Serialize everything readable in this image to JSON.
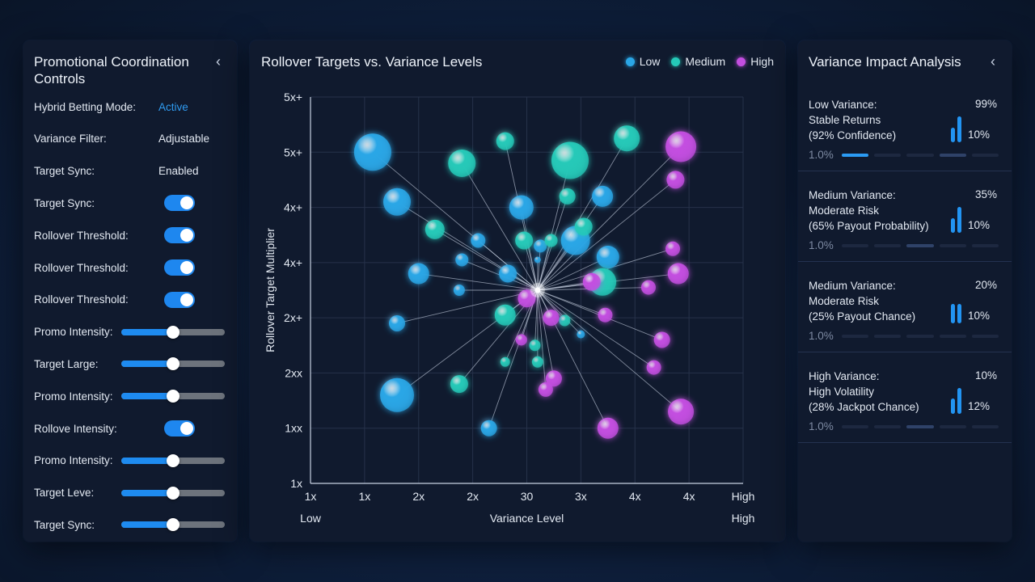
{
  "left": {
    "title": "Promotional Coordination Controls",
    "collapse_icon": "‹",
    "rows": [
      {
        "label": "Hybrid Betting Mode:",
        "kind": "text",
        "value": "Active",
        "active": true
      },
      {
        "label": "Variance Filter:",
        "kind": "text",
        "value": "Adjustable"
      },
      {
        "label": "Target Sync:",
        "kind": "text",
        "value": "Enabled"
      },
      {
        "label": "Target Sync:",
        "kind": "toggle",
        "on": true
      },
      {
        "label": "Rollover Threshold:",
        "kind": "toggle",
        "on": true
      },
      {
        "label": "Rollover Threshold:",
        "kind": "toggle",
        "on": true
      },
      {
        "label": "Rollover Threshold:",
        "kind": "toggle",
        "on": true
      },
      {
        "label": "Promo Intensity:",
        "kind": "slider",
        "level": 0.5
      },
      {
        "label": "Target Large:",
        "kind": "slider",
        "level": 0.5
      },
      {
        "label": "Promo Intensity:",
        "kind": "slider",
        "level": 0.5
      },
      {
        "label": "Rollove Intensity:",
        "kind": "toggle",
        "on": true
      },
      {
        "label": "Promo Intensity:",
        "kind": "slider",
        "level": 0.5
      },
      {
        "label": "Target Leve:",
        "kind": "slider",
        "level": 0.5
      },
      {
        "label": "Target Sync:",
        "kind": "slider",
        "level": 0.5
      }
    ]
  },
  "chart": {
    "title": "Rollover Targets vs. Variance Levels",
    "legend": [
      {
        "label": "Low",
        "color": "#2aa6e6"
      },
      {
        "label": "Medium",
        "color": "#25c9b8"
      },
      {
        "label": "High",
        "color": "#c34ee0"
      }
    ]
  },
  "chart_data": {
    "type": "scatter",
    "title": "Rollover Targets vs. Variance Levels",
    "xlabel": "Variance Level",
    "ylabel": "Rollover Target Multiplier",
    "x_tick_labels": [
      "1x",
      "1x",
      "2x",
      "2x",
      "30",
      "3x",
      "4x",
      "4x",
      "High"
    ],
    "x_range_labels": [
      "Low",
      "High"
    ],
    "y_tick_labels": [
      "1x",
      "1xx",
      "2xx",
      "2x+",
      "4x+",
      "4x+",
      "5x+",
      "5x+"
    ],
    "x_range": [
      0,
      8
    ],
    "y_range": [
      0,
      7
    ],
    "grid": true,
    "legend_position": "top-right",
    "hub": {
      "x": 4.2,
      "y": 3.5
    },
    "series": [
      {
        "name": "Low",
        "color": "#2aa6e6",
        "points": [
          {
            "x": 1.15,
            "y": 6.0,
            "r": 23
          },
          {
            "x": 1.6,
            "y": 5.1,
            "r": 17
          },
          {
            "x": 2.0,
            "y": 3.8,
            "r": 13
          },
          {
            "x": 1.6,
            "y": 2.9,
            "r": 10
          },
          {
            "x": 1.6,
            "y": 1.6,
            "r": 21
          },
          {
            "x": 3.3,
            "y": 1.0,
            "r": 10
          },
          {
            "x": 3.1,
            "y": 4.4,
            "r": 9
          },
          {
            "x": 2.8,
            "y": 4.05,
            "r": 8
          },
          {
            "x": 2.75,
            "y": 3.5,
            "r": 7
          },
          {
            "x": 3.65,
            "y": 3.8,
            "r": 11
          },
          {
            "x": 3.9,
            "y": 5.0,
            "r": 15
          },
          {
            "x": 4.25,
            "y": 4.3,
            "r": 8
          },
          {
            "x": 4.2,
            "y": 4.05,
            "r": 4
          },
          {
            "x": 4.9,
            "y": 4.4,
            "r": 18
          },
          {
            "x": 5.4,
            "y": 5.2,
            "r": 13
          },
          {
            "x": 5.5,
            "y": 4.1,
            "r": 14
          },
          {
            "x": 5.0,
            "y": 2.7,
            "r": 5
          }
        ]
      },
      {
        "name": "Medium",
        "color": "#25c9b8",
        "points": [
          {
            "x": 3.6,
            "y": 6.2,
            "r": 11
          },
          {
            "x": 2.8,
            "y": 5.8,
            "r": 17
          },
          {
            "x": 4.8,
            "y": 5.85,
            "r": 23
          },
          {
            "x": 5.85,
            "y": 6.25,
            "r": 16
          },
          {
            "x": 2.3,
            "y": 4.6,
            "r": 12
          },
          {
            "x": 3.95,
            "y": 4.4,
            "r": 11
          },
          {
            "x": 4.45,
            "y": 4.4,
            "r": 8
          },
          {
            "x": 4.75,
            "y": 5.2,
            "r": 10
          },
          {
            "x": 5.05,
            "y": 4.65,
            "r": 11
          },
          {
            "x": 5.4,
            "y": 3.65,
            "r": 17
          },
          {
            "x": 3.6,
            "y": 3.05,
            "r": 13
          },
          {
            "x": 4.7,
            "y": 2.95,
            "r": 7
          },
          {
            "x": 4.15,
            "y": 2.5,
            "r": 7
          },
          {
            "x": 4.2,
            "y": 2.2,
            "r": 7
          },
          {
            "x": 3.6,
            "y": 2.2,
            "r": 6
          },
          {
            "x": 2.75,
            "y": 1.8,
            "r": 11
          }
        ]
      },
      {
        "name": "High",
        "color": "#c34ee0",
        "points": [
          {
            "x": 6.85,
            "y": 6.1,
            "r": 19
          },
          {
            "x": 6.75,
            "y": 5.5,
            "r": 11
          },
          {
            "x": 6.7,
            "y": 4.25,
            "r": 9
          },
          {
            "x": 6.8,
            "y": 3.8,
            "r": 13
          },
          {
            "x": 5.2,
            "y": 3.65,
            "r": 11
          },
          {
            "x": 6.25,
            "y": 3.55,
            "r": 9
          },
          {
            "x": 4.0,
            "y": 3.35,
            "r": 11
          },
          {
            "x": 4.45,
            "y": 3.0,
            "r": 10
          },
          {
            "x": 5.45,
            "y": 3.05,
            "r": 9
          },
          {
            "x": 6.5,
            "y": 2.6,
            "r": 10
          },
          {
            "x": 6.35,
            "y": 2.1,
            "r": 9
          },
          {
            "x": 3.9,
            "y": 2.6,
            "r": 7
          },
          {
            "x": 4.5,
            "y": 1.9,
            "r": 10
          },
          {
            "x": 4.35,
            "y": 1.7,
            "r": 9
          },
          {
            "x": 5.5,
            "y": 1.0,
            "r": 13
          },
          {
            "x": 6.85,
            "y": 1.3,
            "r": 16
          }
        ]
      }
    ]
  },
  "right": {
    "title": "Variance Impact Analysis",
    "collapse_icon": "‹",
    "items": [
      {
        "line1": "Low Variance:",
        "line2": "Stable Returns",
        "line3": "(92% Confidence)",
        "pct": "99%",
        "small": "10%",
        "foot": "1.0%",
        "bars": [
          0.55,
          1.0
        ],
        "segments": [
          "on",
          "off",
          "off",
          "mid",
          "off"
        ]
      },
      {
        "line1": "Medium Variance:",
        "line2": "Moderate Risk",
        "line3": "(65% Payout Probability)",
        "pct": "35%",
        "small": "10%",
        "foot": "1.0%",
        "bars": [
          0.55,
          1.0
        ],
        "segments": [
          "off",
          "off",
          "mid",
          "off",
          "off"
        ]
      },
      {
        "line1": "Medium Variance:",
        "line2": "Moderate Risk",
        "line3": "(25% Payout Chance)",
        "pct": "20%",
        "small": "10%",
        "foot": "1.0%",
        "bars": [
          0.75,
          0.75
        ],
        "segments": [
          "off",
          "off",
          "off",
          "off",
          "off"
        ]
      },
      {
        "line1": "High Variance:",
        "line2": "High Volatility",
        "line3": "(28% Jackpot Chance)",
        "pct": "10%",
        "small": "12%",
        "foot": "1.0%",
        "bars": [
          0.6,
          1.0
        ],
        "segments": [
          "off",
          "off",
          "mid",
          "off",
          "off"
        ]
      }
    ]
  }
}
